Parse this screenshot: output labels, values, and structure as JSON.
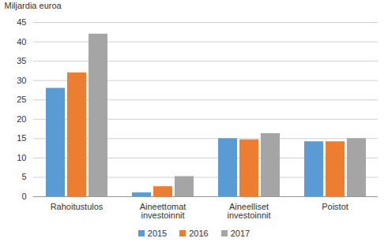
{
  "chart_data": {
    "type": "bar",
    "categories": [
      "Rahoitustulos",
      "Aineettomat investoinnit",
      "Aineelliset investoinnit",
      "Poistot"
    ],
    "series": [
      {
        "name": "2015",
        "color": "#5b9bd5",
        "values": [
          28,
          1,
          15,
          14.2
        ]
      },
      {
        "name": "2016",
        "color": "#ed7d31",
        "values": [
          32,
          2.6,
          14.7,
          14.2
        ]
      },
      {
        "name": "2017",
        "color": "#a5a5a5",
        "values": [
          42,
          5.2,
          16.3,
          15
        ]
      }
    ],
    "y_label": "Miljardia euroa",
    "ylim": [
      0,
      45
    ],
    "yticks": [
      0,
      5,
      10,
      15,
      20,
      25,
      30,
      35,
      40,
      45
    ],
    "grid": true,
    "legend": "bottom"
  }
}
